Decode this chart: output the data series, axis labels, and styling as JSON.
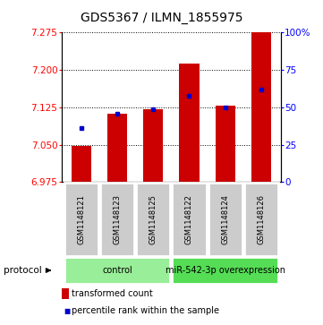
{
  "title": "GDS5367 / ILMN_1855975",
  "samples": [
    "GSM1148121",
    "GSM1148123",
    "GSM1148125",
    "GSM1148122",
    "GSM1148124",
    "GSM1148126"
  ],
  "bar_values": [
    7.048,
    7.112,
    7.122,
    7.213,
    7.128,
    7.275
  ],
  "percentile_values": [
    36,
    46,
    49,
    58,
    50,
    62
  ],
  "ymin": 6.975,
  "ymax": 7.275,
  "yticks_left": [
    6.975,
    7.05,
    7.125,
    7.2,
    7.275
  ],
  "yticks_right": [
    0,
    25,
    50,
    75,
    100
  ],
  "bar_color": "#cc0000",
  "marker_color": "#0000cc",
  "groups": [
    {
      "label": "control",
      "indices": [
        0,
        1,
        2
      ],
      "color": "#99ee99"
    },
    {
      "label": "miR-542-3p overexpression",
      "indices": [
        3,
        4,
        5
      ],
      "color": "#55dd55"
    }
  ],
  "sample_box_color": "#cccccc",
  "protocol_label": "protocol",
  "legend_bar_label": "transformed count",
  "legend_marker_label": "percentile rank within the sample",
  "title_fontsize": 10,
  "tick_fontsize": 7.5,
  "sample_fontsize": 6,
  "group_fontsize": 7,
  "legend_fontsize": 7
}
